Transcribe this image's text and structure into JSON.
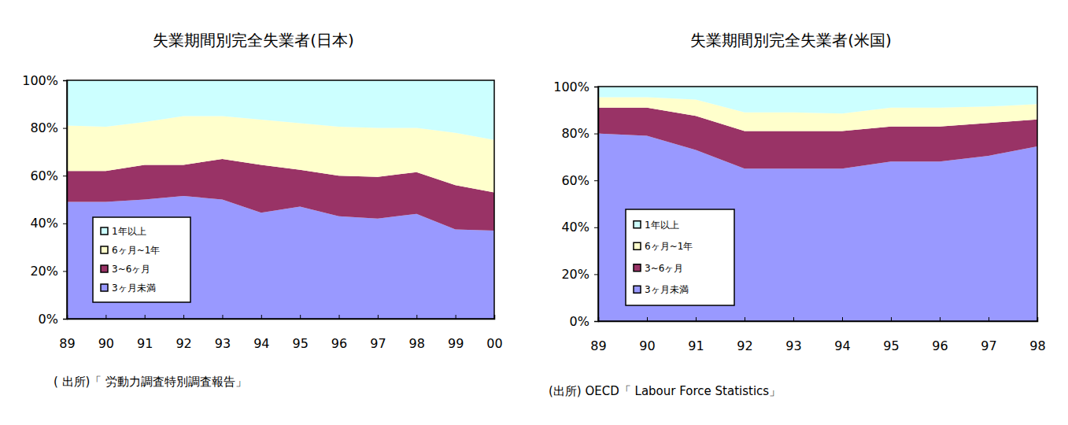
{
  "chart_data": [
    {
      "type": "area",
      "stacked": true,
      "grid": false,
      "legend": "lower left",
      "title": "失業期間別完全失業者(日本)",
      "source": "( 出所)「 労動力調査特別調査報告」",
      "categories": [
        "89",
        "90",
        "91",
        "92",
        "93",
        "94",
        "95",
        "96",
        "97",
        "98",
        "99",
        "00"
      ],
      "ylim": [
        0,
        100
      ],
      "yticks": [
        {
          "value": 0,
          "label": "0%"
        },
        {
          "value": 20,
          "label": "20%"
        },
        {
          "value": 40,
          "label": "40%"
        },
        {
          "value": 60,
          "label": "60%"
        },
        {
          "value": 80,
          "label": "80%"
        },
        {
          "value": 100,
          "label": "100%"
        }
      ],
      "series": [
        {
          "name": "3ヶ月未満",
          "color": "#9999ff",
          "values": [
            49,
            49,
            50,
            51.5,
            50,
            44.5,
            47,
            43,
            42,
            44,
            37.5,
            37
          ]
        },
        {
          "name": "3~6ヶ月",
          "color": "#993366",
          "values": [
            13,
            13,
            14.5,
            13,
            17,
            20,
            15.5,
            17,
            17.5,
            17.5,
            18.5,
            16
          ]
        },
        {
          "name": "6ヶ月~1年",
          "color": "#ffffcc",
          "values": [
            19,
            18.5,
            18,
            20.5,
            18,
            19,
            19.5,
            20.5,
            20.5,
            18.5,
            22,
            22
          ]
        },
        {
          "name": "1年以上",
          "color": "#ccffff",
          "values": [
            19,
            19.5,
            17.5,
            15,
            15,
            16.5,
            18,
            19.5,
            20,
            20,
            22,
            25
          ]
        }
      ]
    },
    {
      "type": "area",
      "stacked": true,
      "grid": false,
      "legend": "lower left",
      "title": "失業期間別完全失業者(米国)",
      "source": "(出所) OECD「 Labour Force Statistics」",
      "categories": [
        "89",
        "90",
        "91",
        "92",
        "93",
        "94",
        "95",
        "96",
        "97",
        "98"
      ],
      "ylim": [
        0,
        100
      ],
      "yticks": [
        {
          "value": 0,
          "label": "0%"
        },
        {
          "value": 20,
          "label": "20%"
        },
        {
          "value": 40,
          "label": "40%"
        },
        {
          "value": 60,
          "label": "60%"
        },
        {
          "value": 80,
          "label": "80%"
        },
        {
          "value": 100,
          "label": "100%"
        }
      ],
      "series": [
        {
          "name": "3ヶ月未満",
          "color": "#9999ff",
          "values": [
            80,
            79,
            73,
            65,
            65,
            65,
            68,
            68,
            70.5,
            74.5
          ]
        },
        {
          "name": "3~6ヶ月",
          "color": "#993366",
          "values": [
            11,
            12,
            14.5,
            16,
            16,
            16,
            15,
            15,
            14,
            11.5
          ]
        },
        {
          "name": "6ヶ月~1年",
          "color": "#ffffcc",
          "values": [
            4.5,
            4.5,
            7,
            8,
            8,
            7.5,
            8,
            8,
            7,
            6.5
          ]
        },
        {
          "name": "1年以上",
          "color": "#ccffff",
          "values": [
            4.5,
            4.5,
            5.5,
            11,
            11,
            11.5,
            9,
            9,
            8.5,
            7.5
          ]
        }
      ]
    }
  ]
}
